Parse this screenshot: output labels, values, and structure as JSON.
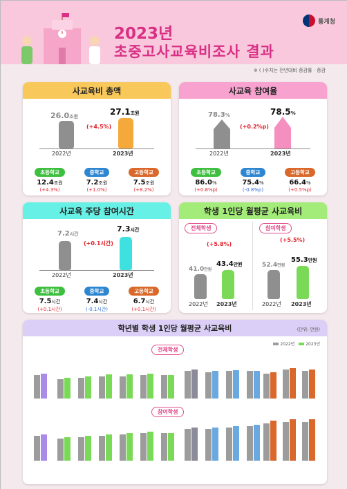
{
  "header": {
    "year_title": "2023년",
    "title": "초중고사교육비조사 결과",
    "agency": "통계청",
    "note": "※ (     )수치는 전년대비 증감률 · 증감"
  },
  "total": {
    "title": "사교육비 총액",
    "prev": {
      "year": "2022년",
      "value": "26.0",
      "unit": "조원"
    },
    "curr": {
      "year": "2023년",
      "value": "27.1",
      "unit": "조원"
    },
    "change": "(+4.5%)",
    "levels": [
      {
        "name": "초등학교",
        "value": "12.4",
        "unit": "조원",
        "change": "(+4.3%)"
      },
      {
        "name": "중학교",
        "value": "7.2",
        "unit": "조원",
        "change": "(+1.0%)"
      },
      {
        "name": "고등학교",
        "value": "7.5",
        "unit": "조원",
        "change": "(+8.2%)"
      }
    ]
  },
  "rate": {
    "title": "사교육 참여율",
    "prev": {
      "year": "2022년",
      "value": "78.3",
      "unit": "%"
    },
    "curr": {
      "year": "2023년",
      "value": "78.5",
      "unit": "%"
    },
    "change": "(+0.2%p)",
    "levels": [
      {
        "name": "초등학교",
        "value": "86.0",
        "unit": "%",
        "change": "(+0.8%p)"
      },
      {
        "name": "중학교",
        "value": "75.4",
        "unit": "%",
        "change": "(-0.8%p)"
      },
      {
        "name": "고등학교",
        "value": "66.4",
        "unit": "%",
        "change": "(+0.5%p)"
      }
    ]
  },
  "hours": {
    "title": "사교육 주당 참여시간",
    "prev": {
      "year": "2022년",
      "value": "7.2",
      "unit": "시간"
    },
    "curr": {
      "year": "2023년",
      "value": "7.3",
      "unit": "시간"
    },
    "change": "(+0.1시간)",
    "levels": [
      {
        "name": "초등학교",
        "value": "7.5",
        "unit": "시간",
        "change": "(+0.1시간)"
      },
      {
        "name": "중학교",
        "value": "7.4",
        "unit": "시간",
        "change": "(-0.1시간)"
      },
      {
        "name": "고등학교",
        "value": "6.7",
        "unit": "시간",
        "change": "(+0.1시간)"
      }
    ]
  },
  "monthly": {
    "title": "학생 1인당 월평균 사교육비",
    "all": {
      "label": "전체학생",
      "prev": {
        "year": "2022년",
        "value": "41.0",
        "unit": "만원"
      },
      "curr": {
        "year": "2023년",
        "value": "43.4",
        "unit": "만원"
      },
      "change": "(+5.8%)"
    },
    "part": {
      "label": "참여학생",
      "prev": {
        "year": "2022년",
        "value": "52.4",
        "unit": "만원"
      },
      "curr": {
        "year": "2023년",
        "value": "55.3",
        "unit": "만원"
      },
      "change": "(+5.5%)"
    }
  },
  "grade": {
    "title": "학년별 학생 1인당 월평균 사교육비",
    "unit": "(단위: 만원)",
    "legend": [
      "2022년",
      "2023년"
    ],
    "all_label": "전체학생",
    "part_label": "참여학생"
  },
  "colors": {
    "accent": "#d92f85",
    "elem": "#3fbf3f",
    "mid": "#2e86d1",
    "high": "#d9682a",
    "green": "#7ad957",
    "orange": "#f6a93b",
    "pink": "#f48fc0",
    "cyan": "#3fe0e0",
    "gray": "#9c9c9c"
  }
}
